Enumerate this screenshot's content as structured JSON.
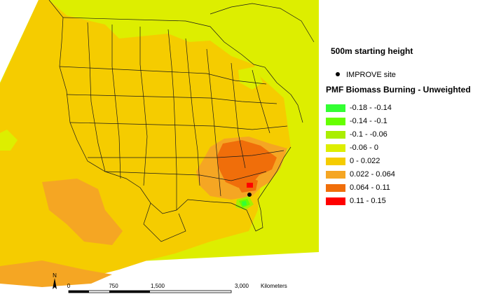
{
  "map": {
    "starting_height": "500m starting height",
    "improve_site_label": "IMPROVE site",
    "legend_title": "PMF Biomass Burning - Unweighted",
    "classes": [
      {
        "label": "-0.18 - -0.14",
        "color": "#33ff33"
      },
      {
        "label": "-0.14 - -0.1",
        "color": "#66ff00"
      },
      {
        "label": "-0.1 - -0.06",
        "color": "#aaee00"
      },
      {
        "label": "-0.06 - 0",
        "color": "#ddee00"
      },
      {
        "label": "0 - 0.022",
        "color": "#f5cc00"
      },
      {
        "label": "0.022 - 0.064",
        "color": "#f5a623"
      },
      {
        "label": "0.064 - 0.11",
        "color": "#f06e0a"
      },
      {
        "label": "0.11 - 0.15",
        "color": "#ff0000"
      }
    ],
    "scale_bar": {
      "ticks": [
        "0",
        "750",
        "1,500",
        "3,000"
      ],
      "unit": "Kilometers"
    },
    "north_arrow_label": "N"
  }
}
